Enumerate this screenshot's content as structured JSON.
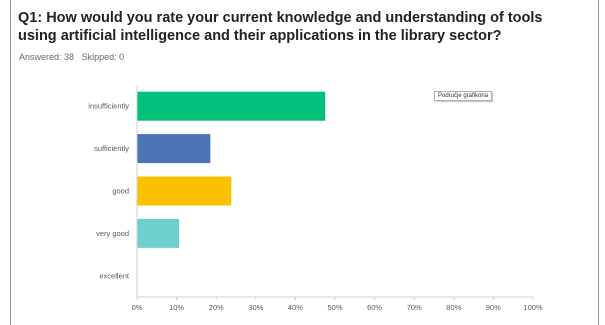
{
  "question": {
    "title": "Q1: How would you rate your current knowledge and understanding of tools using artificial intelligence and their applications in the library sector?",
    "answered": "Answered: 38",
    "skipped": "Skipped: 0"
  },
  "tooltip_text": "Područje grafikona",
  "chart_data": {
    "type": "bar",
    "orientation": "horizontal",
    "categories": [
      "insufficiently",
      "sufficiently",
      "good",
      "very good",
      "excellent"
    ],
    "values": [
      47.4,
      18.4,
      23.7,
      10.5,
      0
    ],
    "colors": [
      "#00c17a",
      "#4a74b3",
      "#fbc000",
      "#6ecfcf",
      "#999999"
    ],
    "xlim": [
      0,
      100
    ],
    "xticks": [
      "0%",
      "10%",
      "20%",
      "30%",
      "40%",
      "50%",
      "60%",
      "70%",
      "80%",
      "90%",
      "100%"
    ],
    "grid": false
  }
}
